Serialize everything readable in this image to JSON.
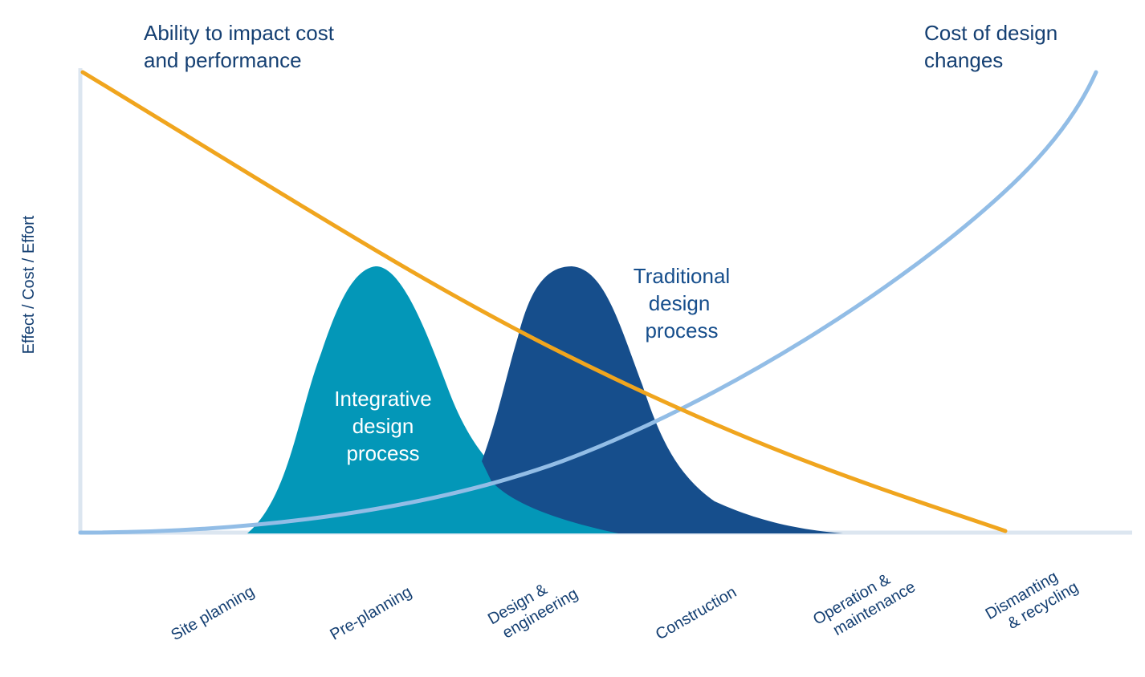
{
  "diagram": {
    "y_axis_label": "Effect / Cost / Effort",
    "curve_labels": {
      "ability_line1": "Ability to impact cost",
      "ability_line2": "and performance",
      "cost_line1": "Cost of design",
      "cost_line2": "changes"
    },
    "process_labels": {
      "integrative": [
        "Integrative",
        "design",
        "process"
      ],
      "traditional": [
        "Traditional",
        "design",
        "process"
      ]
    },
    "phases": [
      [
        "Site planning"
      ],
      [
        "Pre-planning"
      ],
      [
        "Design &",
        "engineering"
      ],
      [
        "Construction"
      ],
      [
        "Operation &",
        "maintenance"
      ],
      [
        "Dismanting",
        "& recycling"
      ]
    ],
    "colors": {
      "ability_curve": "#F0A51E",
      "cost_curve": "#92BDE6",
      "integrative_fill": "#0397B8",
      "traditional_fill": "#164E8C",
      "axis": "#DCE6F0",
      "text": "#143F72",
      "text_on_fill": "#FFFFFF"
    }
  }
}
